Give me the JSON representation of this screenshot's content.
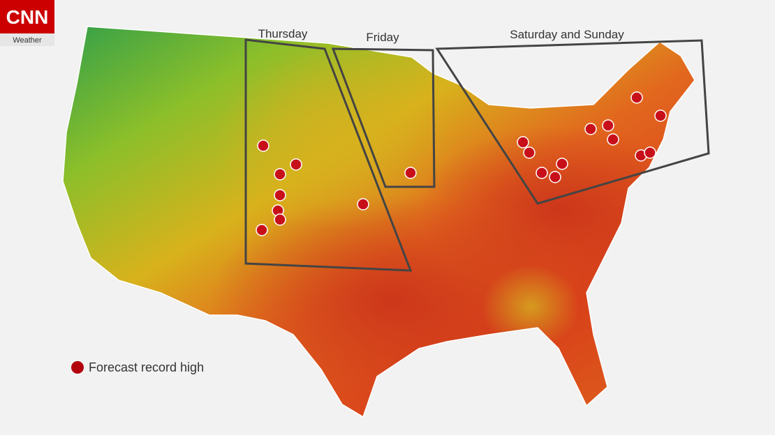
{
  "logo": {
    "brand": "CNN",
    "section": "Weather"
  },
  "regions": [
    {
      "label": "Thursday"
    },
    {
      "label": "Friday"
    },
    {
      "label": "Saturday and Sunday"
    }
  ],
  "legend": {
    "label": "Forecast record high"
  }
}
